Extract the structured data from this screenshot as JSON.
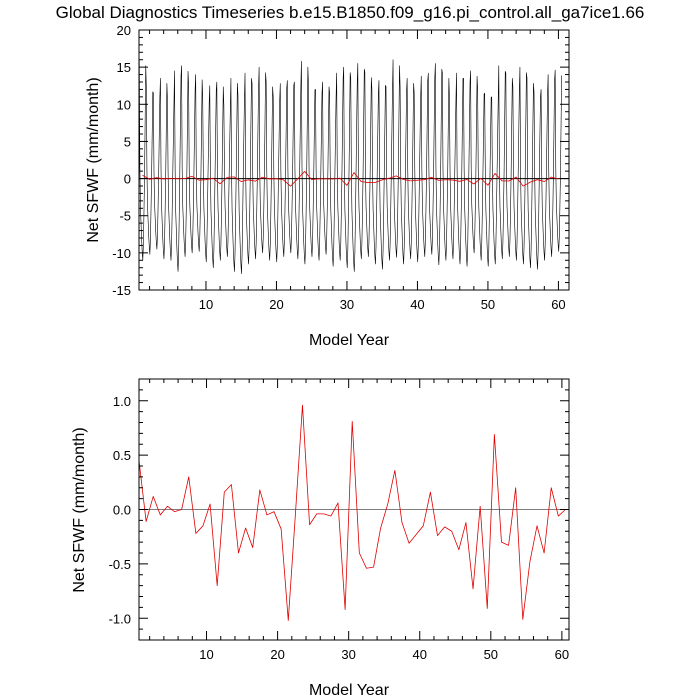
{
  "chart_data": [
    {
      "type": "line",
      "title": "Global Diagnostics Timeseries b.e15.B1850.f09_g16.pi_control.all_ga7ice1.66",
      "xlabel": "Model Year",
      "ylabel": "Net SFWF (mm/month)",
      "xlim": [
        0.5,
        61.5
      ],
      "ylim": [
        -15,
        20
      ],
      "xticks": [
        10,
        20,
        30,
        40,
        50,
        60
      ],
      "xtick_labels": [
        "10",
        "20",
        "30",
        "40",
        "50",
        "60"
      ],
      "yticks": [
        -15,
        -10,
        -5,
        0,
        5,
        10,
        15,
        20
      ],
      "ytick_labels": [
        "-15",
        "-10",
        "-5",
        "0",
        "5",
        "10",
        "15",
        "20"
      ],
      "reference_line": 0,
      "series": [
        {
          "color": "#000000",
          "sampling": "monthly",
          "start_year": 0.54,
          "annual_peaks": [
            16.0,
            12.3,
            11.5,
            13.5,
            10.5,
            14.5,
            15.2,
            12.5,
            14.0,
            10.8,
            12.5,
            13.0,
            9.8,
            13.5,
            11.2,
            14.2,
            12.8,
            15.0,
            13.0,
            11.0,
            12.8,
            13.2,
            13.0,
            15.8,
            12.6,
            12.0,
            13.0,
            11.5,
            14.2,
            15.0,
            13.5,
            15.5,
            14.3,
            12.0,
            13.2,
            12.4,
            16.0,
            12.4,
            13.5,
            11.5,
            13.8,
            14.2,
            15.5,
            14.2,
            11.0,
            14.2,
            13.5,
            14.5,
            12.0,
            11.5,
            11.0,
            15.2,
            14.2,
            12.4,
            15.0,
            13.5,
            11.6,
            12.0,
            14.0,
            14.6
          ],
          "annual_troughs": [
            -11.0,
            -10.2,
            -9.5,
            -10.8,
            -11.0,
            -12.5,
            -10.5,
            -10.0,
            -9.8,
            -11.2,
            -12.0,
            -11.0,
            -10.5,
            -12.5,
            -12.8,
            -11.5,
            -10.8,
            -10.0,
            -11.0,
            -11.2,
            -10.5,
            -10.0,
            -10.8,
            -11.5,
            -10.5,
            -11.0,
            -10.2,
            -11.8,
            -11.0,
            -12.0,
            -12.5,
            -10.8,
            -10.5,
            -11.5,
            -12.2,
            -11.0,
            -10.6,
            -11.5,
            -10.8,
            -11.2,
            -10.5,
            -10.2,
            -11.6,
            -11.0,
            -10.8,
            -11.5,
            -11.8,
            -10.0,
            -11.0,
            -11.8,
            -11.5,
            -10.8,
            -10.5,
            -11.0,
            -11.5,
            -12.0,
            -12.2,
            -11.0,
            -10.5,
            -9.8
          ]
        },
        {
          "color": "#e00000",
          "sampling": "annual",
          "x": [
            1,
            2,
            3,
            4,
            5,
            6,
            7,
            8,
            9,
            10,
            11,
            12,
            13,
            14,
            15,
            16,
            17,
            18,
            19,
            20,
            21,
            22,
            23,
            24,
            25,
            26,
            27,
            28,
            29,
            30,
            31,
            32,
            33,
            34,
            35,
            36,
            37,
            38,
            39,
            40,
            41,
            42,
            43,
            44,
            45,
            46,
            47,
            48,
            49,
            50,
            51,
            52,
            53,
            54,
            55,
            56,
            57,
            58,
            59,
            60
          ],
          "values": [
            0.45,
            -0.11,
            0.12,
            -0.05,
            0.03,
            -0.02,
            0.0,
            0.3,
            -0.22,
            -0.15,
            0.05,
            -0.7,
            0.16,
            0.23,
            -0.4,
            -0.17,
            -0.35,
            0.18,
            -0.05,
            -0.02,
            -0.18,
            -1.02,
            -0.05,
            0.96,
            -0.14,
            -0.04,
            -0.04,
            -0.06,
            0.06,
            -0.92,
            0.81,
            -0.4,
            -0.54,
            -0.53,
            -0.17,
            0.05,
            0.36,
            -0.12,
            -0.31,
            -0.23,
            -0.15,
            0.16,
            -0.24,
            -0.16,
            -0.2,
            -0.37,
            -0.12,
            -0.73,
            0.03,
            -0.91,
            0.69,
            -0.3,
            -0.33,
            0.2,
            -1.01,
            -0.48,
            -0.15,
            -0.4,
            0.2,
            -0.06
          ]
        }
      ]
    },
    {
      "type": "line",
      "xlabel": "Model Year",
      "ylabel": "Net SFWF (mm/month)",
      "xlim": [
        0.5,
        61.0
      ],
      "ylim": [
        -1.2,
        1.2
      ],
      "xticks": [
        10,
        20,
        30,
        40,
        50,
        60
      ],
      "xtick_labels": [
        "10",
        "20",
        "30",
        "40",
        "50",
        "60"
      ],
      "yticks": [
        -1.0,
        -0.5,
        0.0,
        0.5,
        1.0
      ],
      "ytick_labels": [
        "-1.0",
        "-0.5",
        "0.0",
        "0.5",
        "1.0"
      ],
      "reference_line": 0,
      "series": [
        {
          "color": "#e00000",
          "x": [
            0.5,
            1.5,
            2.5,
            3.5,
            4.5,
            5.5,
            6.5,
            7.5,
            8.5,
            9.5,
            10.5,
            11.5,
            12.5,
            13.5,
            14.5,
            15.5,
            16.5,
            17.5,
            18.5,
            19.5,
            20.5,
            21.5,
            22.5,
            23.5,
            24.5,
            25.5,
            26.5,
            27.5,
            28.5,
            29.5,
            30.5,
            31.5,
            32.5,
            33.5,
            34.5,
            35.5,
            36.5,
            37.5,
            38.5,
            39.5,
            40.5,
            41.5,
            42.5,
            43.5,
            44.5,
            45.5,
            46.5,
            47.5,
            48.5,
            49.5,
            50.5,
            51.5,
            52.5,
            53.5,
            54.5,
            55.5,
            56.5,
            57.5,
            58.5,
            59.5,
            60.5
          ],
          "values": [
            0.45,
            -0.11,
            0.12,
            -0.05,
            0.03,
            -0.02,
            0.0,
            0.3,
            -0.22,
            -0.15,
            0.05,
            -0.7,
            0.16,
            0.23,
            -0.4,
            -0.17,
            -0.35,
            0.18,
            -0.05,
            -0.02,
            -0.18,
            -1.02,
            -0.05,
            0.96,
            -0.14,
            -0.04,
            -0.04,
            -0.06,
            0.06,
            -0.92,
            0.81,
            -0.4,
            -0.54,
            -0.53,
            -0.17,
            0.05,
            0.36,
            -0.12,
            -0.31,
            -0.23,
            -0.15,
            0.16,
            -0.24,
            -0.16,
            -0.2,
            -0.37,
            -0.12,
            -0.73,
            0.03,
            -0.91,
            0.69,
            -0.3,
            -0.33,
            0.2,
            -1.01,
            -0.48,
            -0.15,
            -0.4,
            0.2,
            -0.06,
            0.0
          ]
        }
      ]
    }
  ]
}
